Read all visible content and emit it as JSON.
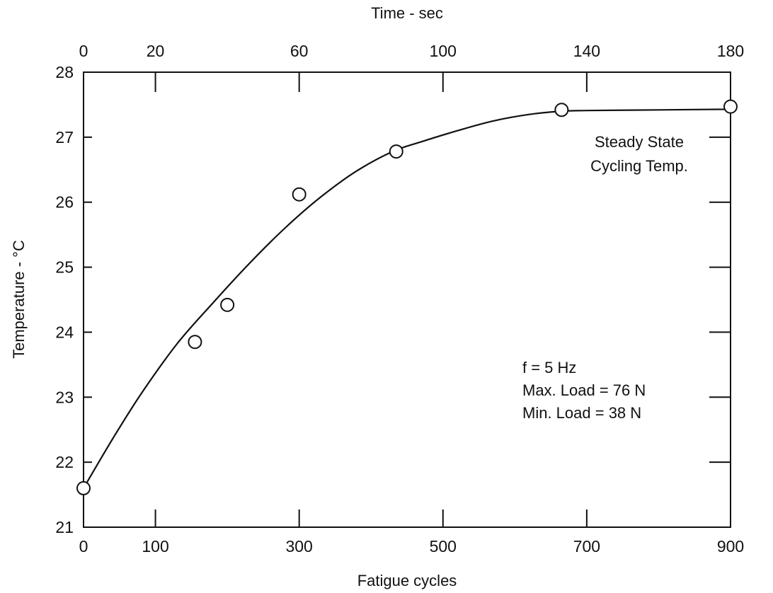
{
  "chart_data": {
    "type": "scatter",
    "title": "",
    "xlabel": "Fatigue cycles",
    "ylabel": "Temperature - °C",
    "x2label": "Time - sec",
    "xlim": [
      0,
      900
    ],
    "ylim": [
      21,
      28
    ],
    "x2lim": [
      0,
      180
    ],
    "x_ticks": [
      0,
      100,
      300,
      500,
      700,
      900
    ],
    "x_tick_labels": [
      "0",
      "100",
      "300",
      "500",
      "700",
      "900"
    ],
    "x2_ticks": [
      0,
      20,
      60,
      100,
      140,
      180
    ],
    "x2_tick_labels": [
      "0",
      "20",
      "60",
      "100",
      "140",
      "180"
    ],
    "y_ticks": [
      21,
      22,
      23,
      24,
      25,
      26,
      27,
      28
    ],
    "y_tick_labels": [
      "21",
      "22",
      "23",
      "24",
      "25",
      "26",
      "27",
      "28"
    ],
    "grid": false,
    "series": [
      {
        "marker": "open-circle",
        "x": [
          0,
          155,
          200,
          300,
          435,
          665,
          900
        ],
        "y": [
          21.6,
          23.85,
          24.42,
          26.12,
          26.78,
          27.42,
          27.47
        ]
      }
    ],
    "fit_curve": {
      "x": [
        0,
        40,
        80,
        130,
        180,
        230,
        280,
        330,
        380,
        430,
        470,
        520,
        570,
        620,
        665,
        700,
        800,
        900
      ],
      "y": [
        21.6,
        22.35,
        23.05,
        23.82,
        24.45,
        25.05,
        25.6,
        26.08,
        26.48,
        26.78,
        26.93,
        27.1,
        27.25,
        27.35,
        27.4,
        27.41,
        27.42,
        27.43
      ]
    },
    "annotations": {
      "steady_state_line1": "Steady State",
      "steady_state_line2": "Cycling Temp.",
      "frequency": "f = 5 Hz",
      "max_load": "Max. Load = 76 N",
      "min_load": "Min. Load = 38 N"
    }
  }
}
